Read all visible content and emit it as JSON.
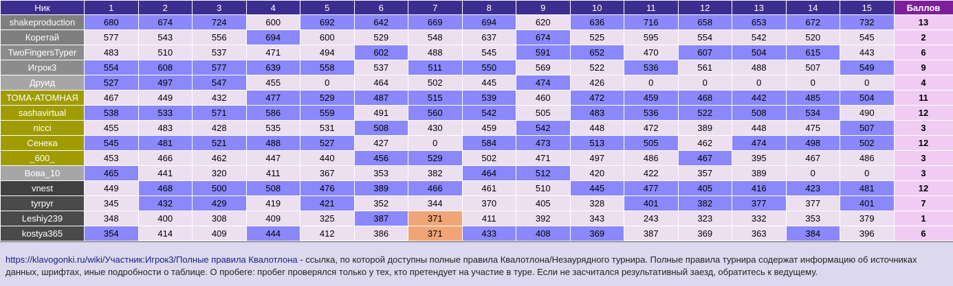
{
  "header": {
    "nick_label": "Ник",
    "rounds": [
      "1",
      "2",
      "3",
      "4",
      "5",
      "6",
      "7",
      "8",
      "9",
      "10",
      "11",
      "12",
      "13",
      "14",
      "15"
    ],
    "score_label": "Баллов"
  },
  "colors": {
    "header_bg": "#3c2e8e",
    "score_header_bg": "#7e1f9a",
    "cell_bg": "#ecdff0",
    "cell_highlight": "#8a88fb",
    "cell_orange": "#f0a577",
    "score_bg": "#f0ccf5",
    "group_gray": "#7f7f7f",
    "group_light": "#a6a6a6",
    "group_olive": "#a09c00",
    "group_dark": "#404040"
  },
  "groups": [
    {
      "color": "#7f7f7f",
      "size": 2
    },
    {
      "color": "#8c8c8c",
      "size": 2
    },
    {
      "color": "#a6a6a6",
      "size": 1
    },
    {
      "color": "#a09c00",
      "size": 1
    },
    {
      "color": "#a09c00",
      "size": 2
    },
    {
      "color": "#a09c00",
      "size": 2
    },
    {
      "color": "#a6a6a6",
      "size": 1
    },
    {
      "color": "#404040",
      "size": 1
    },
    {
      "color": "#4a4a4a",
      "size": 3
    }
  ],
  "rows": [
    {
      "nick": "shakeproduction",
      "values": [
        "680",
        "674",
        "724",
        "600",
        "692",
        "642",
        "669",
        "694",
        "620",
        "636",
        "716",
        "658",
        "653",
        "672",
        "732"
      ],
      "hl": [
        1,
        1,
        1,
        0,
        1,
        1,
        1,
        1,
        0,
        1,
        1,
        1,
        1,
        1,
        1
      ],
      "score": "13"
    },
    {
      "nick": "Коретай",
      "values": [
        "577",
        "543",
        "556",
        "694",
        "600",
        "529",
        "548",
        "637",
        "674",
        "525",
        "595",
        "554",
        "542",
        "520",
        "545"
      ],
      "hl": [
        0,
        0,
        0,
        1,
        0,
        0,
        0,
        0,
        1,
        0,
        0,
        0,
        0,
        0,
        0
      ],
      "score": "2"
    },
    {
      "nick": "TwoFingersTyper",
      "values": [
        "483",
        "510",
        "537",
        "471",
        "494",
        "602",
        "488",
        "545",
        "591",
        "652",
        "470",
        "607",
        "504",
        "615",
        "443"
      ],
      "hl": [
        0,
        0,
        0,
        0,
        0,
        1,
        0,
        0,
        1,
        1,
        0,
        1,
        1,
        1,
        0
      ],
      "score": "6"
    },
    {
      "nick": "Игрок3",
      "values": [
        "554",
        "608",
        "577",
        "639",
        "558",
        "537",
        "511",
        "550",
        "569",
        "522",
        "536",
        "561",
        "488",
        "507",
        "549"
      ],
      "hl": [
        1,
        1,
        1,
        1,
        1,
        0,
        1,
        1,
        0,
        0,
        1,
        0,
        0,
        0,
        1
      ],
      "score": "9"
    },
    {
      "nick": "Друид",
      "values": [
        "527",
        "497",
        "547",
        "455",
        "0",
        "464",
        "502",
        "445",
        "474",
        "426",
        "0",
        "0",
        "0",
        "0",
        "0"
      ],
      "hl": [
        1,
        1,
        1,
        0,
        0,
        0,
        0,
        0,
        1,
        0,
        0,
        0,
        0,
        0,
        0
      ],
      "score": "4"
    },
    {
      "nick": "ТОМА-АТОМНАЯ",
      "values": [
        "467",
        "449",
        "432",
        "477",
        "529",
        "487",
        "515",
        "539",
        "460",
        "472",
        "459",
        "468",
        "442",
        "485",
        "504"
      ],
      "hl": [
        0,
        0,
        0,
        1,
        1,
        1,
        1,
        1,
        0,
        1,
        1,
        1,
        1,
        1,
        1
      ],
      "score": "11"
    },
    {
      "nick": "sashavirtual",
      "values": [
        "538",
        "533",
        "571",
        "586",
        "559",
        "491",
        "560",
        "542",
        "505",
        "483",
        "536",
        "522",
        "508",
        "534",
        "490"
      ],
      "hl": [
        1,
        1,
        1,
        1,
        1,
        0,
        1,
        1,
        0,
        1,
        1,
        1,
        1,
        1,
        0
      ],
      "score": "12"
    },
    {
      "nick": "nicci",
      "values": [
        "455",
        "483",
        "428",
        "535",
        "531",
        "508",
        "430",
        "459",
        "542",
        "448",
        "472",
        "389",
        "448",
        "475",
        "507"
      ],
      "hl": [
        0,
        0,
        0,
        0,
        0,
        1,
        0,
        0,
        1,
        0,
        0,
        0,
        0,
        0,
        1
      ],
      "score": "3"
    },
    {
      "nick": "Сенека",
      "values": [
        "545",
        "481",
        "521",
        "488",
        "527",
        "427",
        "0",
        "584",
        "473",
        "513",
        "505",
        "462",
        "474",
        "498",
        "502"
      ],
      "hl": [
        1,
        1,
        1,
        1,
        1,
        0,
        0,
        1,
        1,
        1,
        1,
        0,
        1,
        1,
        1
      ],
      "score": "12"
    },
    {
      "nick": "_600_",
      "values": [
        "453",
        "466",
        "462",
        "447",
        "440",
        "456",
        "529",
        "502",
        "471",
        "497",
        "486",
        "467",
        "395",
        "467",
        "486"
      ],
      "hl": [
        0,
        0,
        0,
        0,
        0,
        1,
        1,
        0,
        0,
        0,
        0,
        1,
        0,
        0,
        0
      ],
      "score": "3"
    },
    {
      "nick": "Вова_10",
      "values": [
        "465",
        "441",
        "320",
        "411",
        "367",
        "353",
        "382",
        "464",
        "512",
        "420",
        "422",
        "357",
        "389",
        "0",
        "0"
      ],
      "hl": [
        1,
        0,
        0,
        0,
        0,
        0,
        0,
        1,
        1,
        0,
        0,
        0,
        0,
        0,
        0
      ],
      "score": "3"
    },
    {
      "nick": "vnest",
      "values": [
        "449",
        "468",
        "500",
        "508",
        "476",
        "389",
        "466",
        "461",
        "510",
        "445",
        "477",
        "405",
        "416",
        "423",
        "481"
      ],
      "hl": [
        0,
        1,
        1,
        1,
        1,
        1,
        1,
        0,
        0,
        1,
        1,
        1,
        1,
        1,
        1
      ],
      "score": "12"
    },
    {
      "nick": "tyrpyr",
      "values": [
        "345",
        "432",
        "429",
        "419",
        "421",
        "352",
        "344",
        "370",
        "405",
        "328",
        "401",
        "382",
        "377",
        "377",
        "401"
      ],
      "hl": [
        0,
        1,
        1,
        0,
        1,
        0,
        0,
        0,
        0,
        0,
        1,
        1,
        1,
        0,
        1
      ],
      "score": "7"
    },
    {
      "nick": "Leshiy239",
      "values": [
        "348",
        "400",
        "308",
        "409",
        "325",
        "387",
        "371",
        "411",
        "392",
        "343",
        "243",
        "323",
        "332",
        "353",
        "379"
      ],
      "hl": [
        0,
        0,
        0,
        0,
        0,
        1,
        2,
        0,
        0,
        0,
        0,
        0,
        0,
        0,
        0
      ],
      "score": "1"
    },
    {
      "nick": "kostya365",
      "values": [
        "354",
        "414",
        "409",
        "444",
        "412",
        "386",
        "371",
        "433",
        "408",
        "369",
        "387",
        "369",
        "363",
        "384",
        "396"
      ],
      "hl": [
        1,
        0,
        0,
        1,
        0,
        0,
        2,
        1,
        1,
        1,
        0,
        0,
        0,
        1,
        0
      ],
      "score": "6"
    }
  ],
  "footer": {
    "link_text": "https://klavogonki.ru/wiki/Участник:Игрок3/Полные правила Квалотлона",
    "text": " - ссылка, по которой доступны полные правила Квалотлона/Незаурядного турнира. Полные правила турнира содержат информацию об источниках данных, шрифтах, иные подробности о таблице. О пробеге: пробег проверялся только у тех, кто претендует на участие в туре. Если не засчитался результативный заезд, обратитесь к ведущему."
  }
}
